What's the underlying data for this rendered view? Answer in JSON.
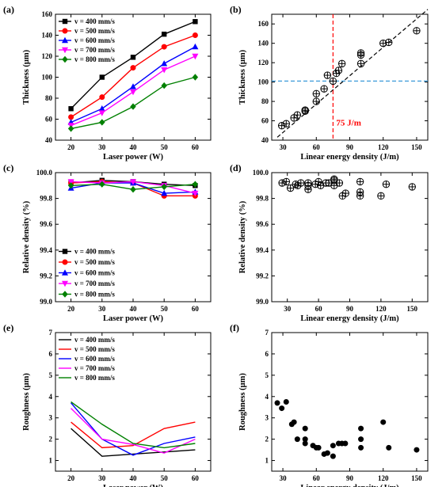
{
  "chart_data": [
    {
      "panel_label": "(a)",
      "type": "line",
      "xlabel": "Laser power (W)",
      "ylabel": "Thickness (μm)",
      "xlim": [
        15,
        65
      ],
      "ylim": [
        40,
        160
      ],
      "xticks": [
        20,
        30,
        40,
        50,
        60
      ],
      "yticks": [
        40,
        60,
        80,
        100,
        120,
        140,
        160
      ],
      "x": [
        20,
        30,
        40,
        50,
        60
      ],
      "legend_position": "top-left",
      "series": [
        {
          "name": "v = 400 mm/s",
          "color": "#000000",
          "marker": "square",
          "values": [
            70,
            100,
            119,
            141,
            153
          ]
        },
        {
          "name": "v = 500 mm/s",
          "color": "#ff0000",
          "marker": "circle",
          "values": [
            62,
            81,
            109,
            129,
            140
          ]
        },
        {
          "name": "v = 600 mm/s",
          "color": "#0000ff",
          "marker": "triangle-up",
          "values": [
            57,
            70,
            91,
            113,
            129
          ]
        },
        {
          "name": "v = 700 mm/s",
          "color": "#ff00ff",
          "marker": "triangle-down",
          "values": [
            54,
            66,
            86,
            107,
            120
          ]
        },
        {
          "name": "v = 800 mm/s",
          "color": "#008000",
          "marker": "diamond",
          "values": [
            51,
            57,
            72,
            92,
            100
          ]
        }
      ]
    },
    {
      "panel_label": "(b)",
      "type": "scatter",
      "xlabel": "Linear energy density  (J/m)",
      "ylabel": "Thickness (μm)",
      "xlim": [
        20,
        160
      ],
      "ylim": [
        40,
        170
      ],
      "xticks": [
        30,
        60,
        90,
        120,
        150
      ],
      "yticks": [
        40,
        60,
        80,
        100,
        120,
        140,
        160
      ],
      "marker": "circle-cross",
      "points": [
        [
          150,
          153
        ],
        [
          125,
          141
        ],
        [
          120,
          140
        ],
        [
          100,
          130
        ],
        [
          100,
          128
        ],
        [
          100,
          119
        ],
        [
          83,
          119
        ],
        [
          80,
          112
        ],
        [
          78,
          109
        ],
        [
          75,
          101
        ],
        [
          70,
          107
        ],
        [
          67,
          93
        ],
        [
          60,
          88
        ],
        [
          60,
          80
        ],
        [
          50,
          70
        ],
        [
          50,
          71
        ],
        [
          43,
          66
        ],
        [
          40,
          63
        ],
        [
          33,
          57
        ],
        [
          29,
          55
        ]
      ],
      "trendline": [
        [
          25,
          43
        ],
        [
          160,
          175
        ]
      ],
      "hline_y": 101,
      "vline_x": 75,
      "annotation": "75 J/m"
    },
    {
      "panel_label": "(c)",
      "type": "line",
      "xlabel": "Laser power (W)",
      "ylabel": "Relative density (%)",
      "xlim": [
        15,
        65
      ],
      "ylim": [
        99.0,
        100.0
      ],
      "xticks": [
        20,
        30,
        40,
        50,
        60
      ],
      "yticks": [
        99.0,
        99.2,
        99.4,
        99.6,
        99.8,
        100.0
      ],
      "ytick_labels": [
        "99.0",
        "99.2",
        "99.4",
        "99.6",
        "99.8",
        "100.0"
      ],
      "x": [
        20,
        30,
        40,
        50,
        60
      ],
      "legend_position": "bottom-left",
      "series": [
        {
          "name": "v = 400 mm/s",
          "color": "#000000",
          "marker": "square",
          "values": [
            99.92,
            99.94,
            99.93,
            99.91,
            99.9
          ]
        },
        {
          "name": "v = 500 mm/s",
          "color": "#ff0000",
          "marker": "circle",
          "values": [
            99.92,
            99.93,
            99.92,
            99.82,
            99.82
          ]
        },
        {
          "name": "v = 600 mm/s",
          "color": "#0000ff",
          "marker": "triangle-up",
          "values": [
            99.88,
            99.92,
            99.92,
            99.84,
            99.85
          ]
        },
        {
          "name": "v = 700 mm/s",
          "color": "#ff00ff",
          "marker": "triangle-down",
          "values": [
            99.93,
            99.92,
            99.93,
            99.9,
            99.84
          ]
        },
        {
          "name": "v = 800 mm/s",
          "color": "#008000",
          "marker": "diamond",
          "values": [
            99.9,
            99.91,
            99.87,
            99.89,
            99.91
          ]
        }
      ]
    },
    {
      "panel_label": "(d)",
      "type": "scatter",
      "xlabel": "Linear energy density (J/m)",
      "ylabel": "Relative density (%)",
      "xlim": [
        15,
        165
      ],
      "ylim": [
        99.0,
        100.0
      ],
      "xticks": [
        30,
        60,
        90,
        120,
        150
      ],
      "yticks": [
        99.0,
        99.2,
        99.4,
        99.6,
        99.8,
        100.0
      ],
      "ytick_labels": [
        "99.0",
        "99.2",
        "99.4",
        "99.6",
        "99.8",
        "100.0"
      ],
      "marker": "circle-cross",
      "points": [
        [
          25,
          99.92
        ],
        [
          29,
          99.93
        ],
        [
          33,
          99.88
        ],
        [
          38,
          99.91
        ],
        [
          40,
          99.9
        ],
        [
          43,
          99.92
        ],
        [
          50,
          99.92
        ],
        [
          50,
          99.9
        ],
        [
          50,
          99.87
        ],
        [
          57,
          99.91
        ],
        [
          60,
          99.93
        ],
        [
          62,
          99.9
        ],
        [
          67,
          99.92
        ],
        [
          70,
          99.92
        ],
        [
          75,
          99.9
        ],
        [
          75,
          99.94
        ],
        [
          75,
          99.95
        ],
        [
          80,
          99.92
        ],
        [
          83,
          99.82
        ],
        [
          86,
          99.84
        ],
        [
          100,
          99.93
        ],
        [
          100,
          99.85
        ],
        [
          100,
          99.82
        ],
        [
          120,
          99.82
        ],
        [
          125,
          99.91
        ],
        [
          150,
          99.89
        ]
      ]
    },
    {
      "panel_label": "(e)",
      "type": "line",
      "xlabel": "Laser power (W)",
      "ylabel": "Roughness (μm)",
      "xlim": [
        15,
        65
      ],
      "ylim": [
        0.5,
        7
      ],
      "xticks": [
        20,
        30,
        40,
        50,
        60
      ],
      "yticks": [
        1,
        2,
        3,
        4,
        5,
        6,
        7
      ],
      "x": [
        20,
        30,
        40,
        50,
        60
      ],
      "legend_position": "top-left",
      "series": [
        {
          "name": "v = 400 mm/s",
          "color": "#000000",
          "marker": "none",
          "values": [
            2.5,
            1.2,
            1.3,
            1.4,
            1.5
          ]
        },
        {
          "name": "v = 500 mm/s",
          "color": "#ff0000",
          "marker": "none",
          "values": [
            2.8,
            1.6,
            1.7,
            2.5,
            2.8
          ]
        },
        {
          "name": "v = 600 mm/s",
          "color": "#0000ff",
          "marker": "none",
          "values": [
            3.7,
            2.0,
            1.25,
            1.8,
            2.1
          ]
        },
        {
          "name": "v = 700 mm/s",
          "color": "#ff00ff",
          "marker": "none",
          "values": [
            3.45,
            2.0,
            1.75,
            1.35,
            2.0
          ]
        },
        {
          "name": "v = 800 mm/s",
          "color": "#008000",
          "marker": "none",
          "values": [
            3.75,
            2.7,
            1.8,
            1.6,
            1.8
          ]
        }
      ]
    },
    {
      "panel_label": "(f)",
      "type": "scatter",
      "xlabel": "Linear energy density (J/m)",
      "ylabel": "Roughness (μm)",
      "xlim": [
        20,
        160
      ],
      "ylim": [
        0.5,
        7
      ],
      "xticks": [
        30,
        60,
        90,
        120,
        150
      ],
      "yticks": [
        1,
        2,
        3,
        4,
        5,
        6,
        7
      ],
      "marker": "circle",
      "points": [
        [
          25,
          3.7
        ],
        [
          29,
          3.45
        ],
        [
          33,
          3.75
        ],
        [
          38,
          2.7
        ],
        [
          40,
          2.8
        ],
        [
          43,
          2.0
        ],
        [
          50,
          2.5
        ],
        [
          50,
          2.0
        ],
        [
          50,
          1.8
        ],
        [
          57,
          1.7
        ],
        [
          60,
          1.6
        ],
        [
          62,
          1.6
        ],
        [
          67,
          1.3
        ],
        [
          70,
          1.35
        ],
        [
          75,
          1.2
        ],
        [
          75,
          1.7
        ],
        [
          80,
          1.8
        ],
        [
          83,
          1.8
        ],
        [
          86,
          1.8
        ],
        [
          100,
          2.5
        ],
        [
          100,
          2.0
        ],
        [
          100,
          1.6
        ],
        [
          120,
          2.8
        ],
        [
          125,
          1.6
        ],
        [
          150,
          1.5
        ]
      ]
    }
  ]
}
